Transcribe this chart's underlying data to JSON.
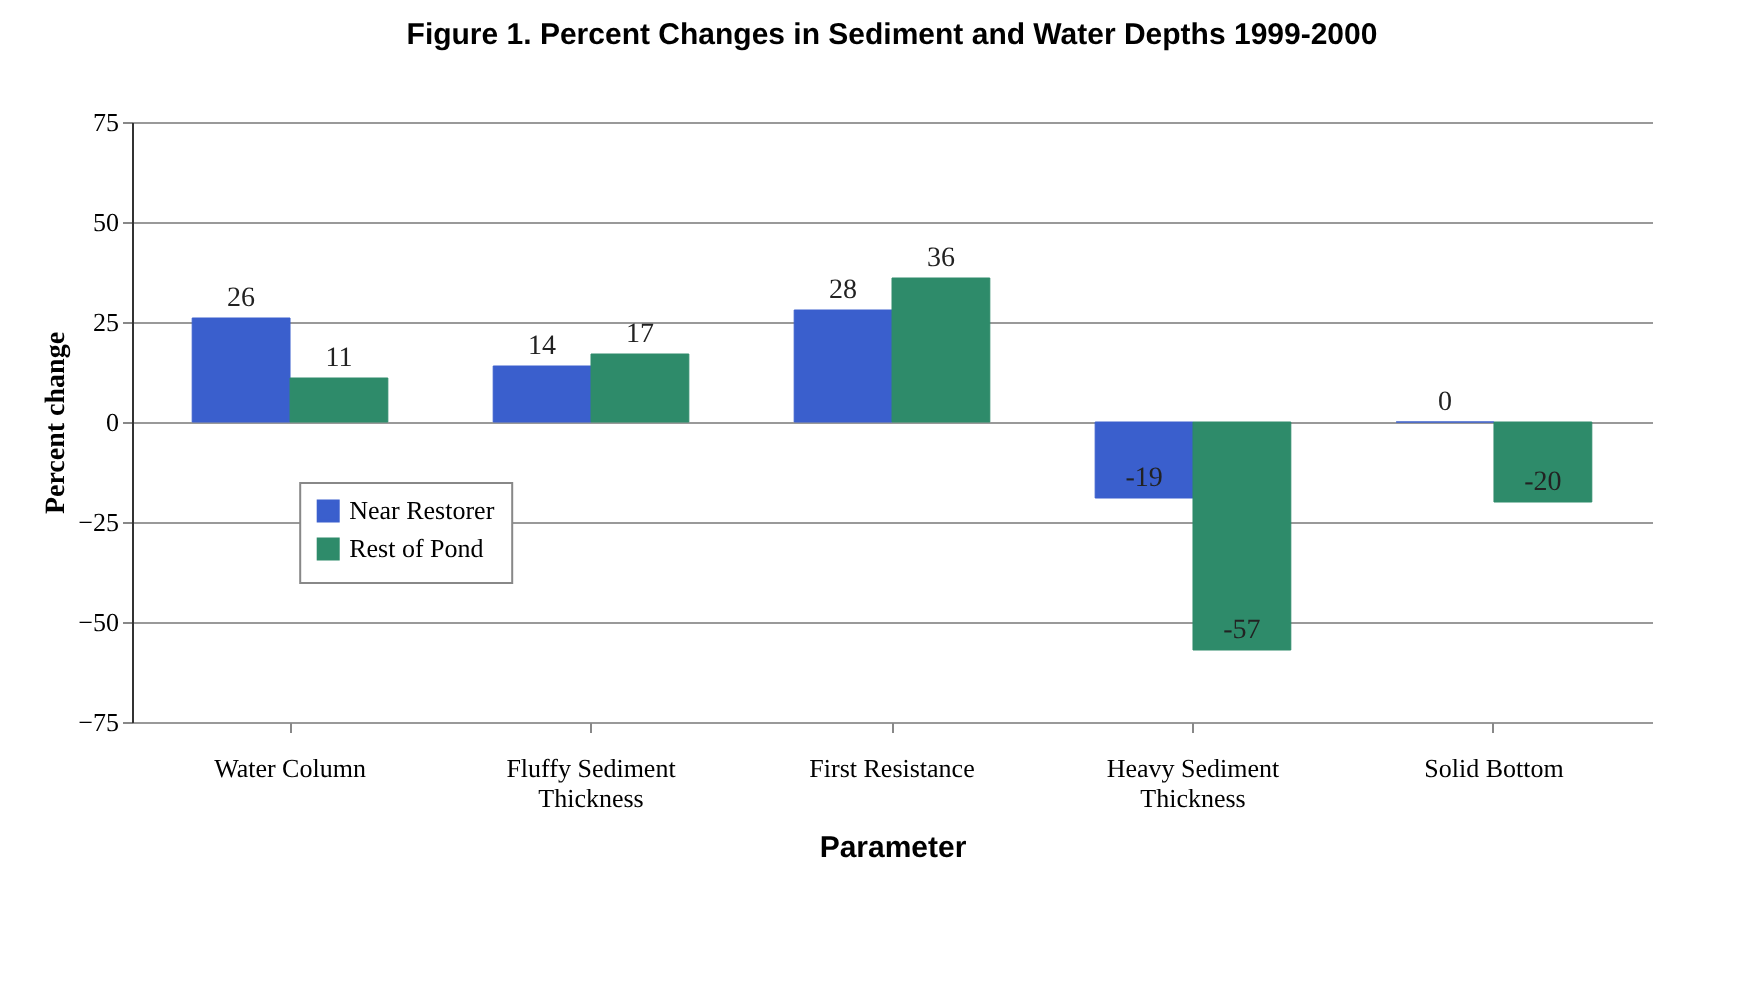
{
  "chart_data": {
    "type": "bar",
    "title": "Figure 1. Percent Changes in Sediment and Water Depths 1999-2000",
    "xlabel": "Parameter",
    "ylabel": "Percent change",
    "categories": [
      "Water Column",
      "Fluffy Sediment Thickness",
      "First Resistance",
      "Heavy Sediment Thickness",
      "Solid Bottom"
    ],
    "series": [
      {
        "name": "Near Restorer",
        "color": "#3a5fcd",
        "values": [
          26,
          14,
          28,
          -19,
          0
        ]
      },
      {
        "name": "Rest of Pond",
        "color": "#2e8b6a",
        "values": [
          11,
          17,
          36,
          -57,
          -20
        ]
      }
    ],
    "ylim": [
      -75,
      75
    ],
    "yticks": [
      -75,
      -50,
      -25,
      0,
      25,
      50,
      75
    ],
    "grid": "y",
    "legend": "left",
    "data_labels": true
  }
}
